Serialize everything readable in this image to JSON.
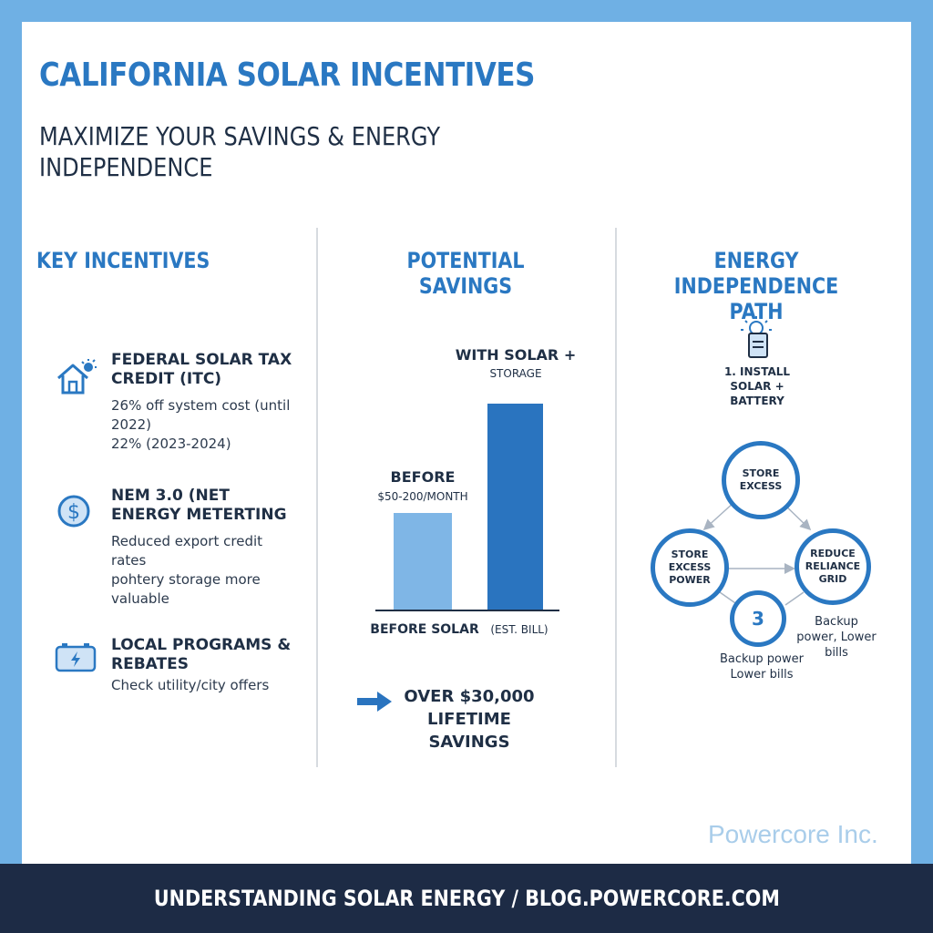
{
  "title": "CALIFORNIA SOLAR INCENTIVES",
  "subtitle": "MAXIMIZE YOUR SAVINGS & ENERGY INDEPENDENCE",
  "columns": {
    "incentives": {
      "heading": "KEY INCENTIVES",
      "items": [
        {
          "icon": "house-sun-icon",
          "title": "FEDERAL SOLAR TAX CREDIT (ITC)",
          "lines": [
            "26% off system cost (until 2022)",
            "22% (2023-2024)"
          ]
        },
        {
          "icon": "dollar-icon",
          "title": "NEM 3.0 (NET ENERGY METERTING",
          "lines": [
            "Reduced export credit rates",
            "pohtery storage more valuable"
          ]
        },
        {
          "icon": "battery-icon",
          "title": "LOCAL PROGRAMS & REBATES",
          "lines": [
            "Check utility/city offers"
          ]
        }
      ]
    },
    "savings": {
      "heading": "POTENTIAL SAVINGS",
      "before_label": "BEFORE",
      "before_value": "$50-200/MONTH",
      "with_label": "WITH SOLAR +",
      "with_sub": "STORAGE",
      "x_before": "BEFORE SOLAR",
      "x_with": "(EST. BILL)",
      "callout": "OVER $30,000 LIFETIME SAVINGS",
      "colors": {
        "before": "#7fb6e6",
        "with": "#2a74bf"
      },
      "bar_levels": {
        "before": 0.47,
        "with": 1.0
      }
    },
    "independence": {
      "heading": "ENERGY INDEPENDENCE PATH",
      "step1": "1. INSTALL SOLAR + BATTERY",
      "nodes": {
        "top": "STORE EXCESS",
        "left": "STORE EXCESS POWER",
        "right": "REDUCE RELIANCE GRID",
        "bottom": "3"
      },
      "note_right": "Backup power, Lower bills",
      "note_bottom": "Backup power Lower bills"
    }
  },
  "brand": "Powercore Inc.",
  "footer": "UNDERSTANDING SOLAR ENERGY / BLOG.POWERCORE.COM"
}
